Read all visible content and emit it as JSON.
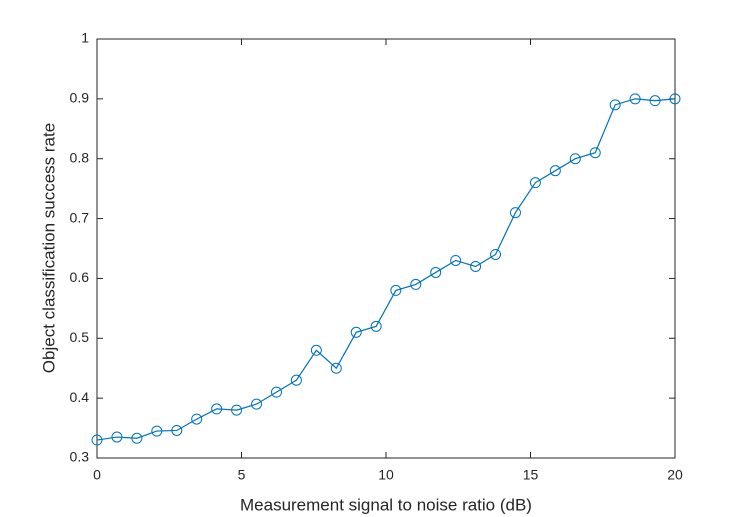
{
  "chart_data": {
    "type": "line",
    "x_label": "Measurement signal to noise ratio (dB)",
    "y_label": "Object classification success rate",
    "x": [
      0,
      0.69,
      1.38,
      2.07,
      2.76,
      3.45,
      4.14,
      4.83,
      5.52,
      6.21,
      6.9,
      7.59,
      8.28,
      8.97,
      9.66,
      10.34,
      11.03,
      11.72,
      12.41,
      13.1,
      13.79,
      14.48,
      15.17,
      15.86,
      16.55,
      17.24,
      17.93,
      18.62,
      19.31,
      20
    ],
    "series": [
      {
        "color": "#0072bd",
        "marker": "circle",
        "values": [
          0.33,
          0.335,
          0.333,
          0.345,
          0.346,
          0.365,
          0.382,
          0.38,
          0.39,
          0.41,
          0.43,
          0.48,
          0.45,
          0.51,
          0.52,
          0.58,
          0.59,
          0.61,
          0.63,
          0.62,
          0.64,
          0.71,
          0.76,
          0.78,
          0.8,
          0.81,
          0.89,
          0.9,
          0.897,
          0.9
        ]
      }
    ],
    "xlim": [
      0,
      20
    ],
    "xticks": [
      0,
      5,
      10,
      15,
      20
    ],
    "ylim": [
      0.3,
      1
    ],
    "yticks": [
      0.3,
      0.4,
      0.5,
      0.6,
      0.7,
      0.8,
      0.9,
      1
    ],
    "grid": false
  }
}
